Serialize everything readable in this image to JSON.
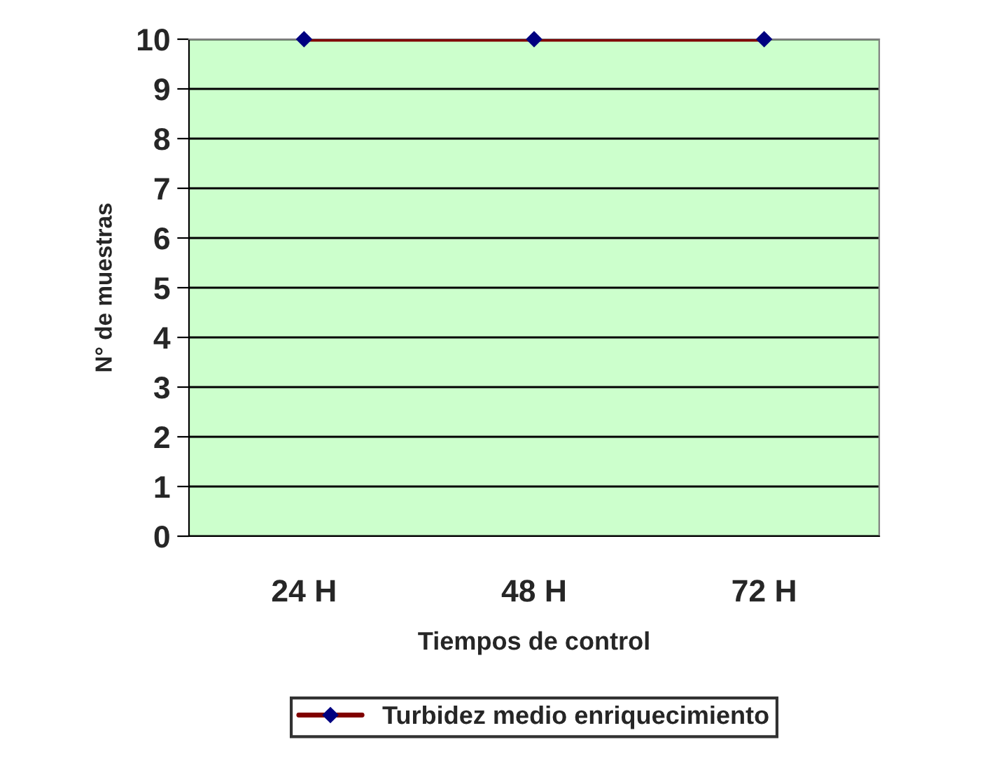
{
  "chart_data": {
    "type": "line",
    "xlabel": "Tiempos de control",
    "ylabel": "N° de muestras",
    "categories": [
      "24 H",
      "48 H",
      "72 H"
    ],
    "series": [
      {
        "name": "Turbidez medio enriquecimiento",
        "color": "#800000",
        "colors": [
          "#000080",
          "#000080",
          "#000080"
        ],
        "values": [
          10,
          10,
          10
        ]
      }
    ],
    "ylim": [
      0,
      10
    ],
    "yticks": [
      0,
      1,
      2,
      3,
      4,
      5,
      6,
      7,
      8,
      9,
      10
    ],
    "grid": "y",
    "legend": "bottom",
    "marker": "diamond",
    "line_style": "solid"
  }
}
